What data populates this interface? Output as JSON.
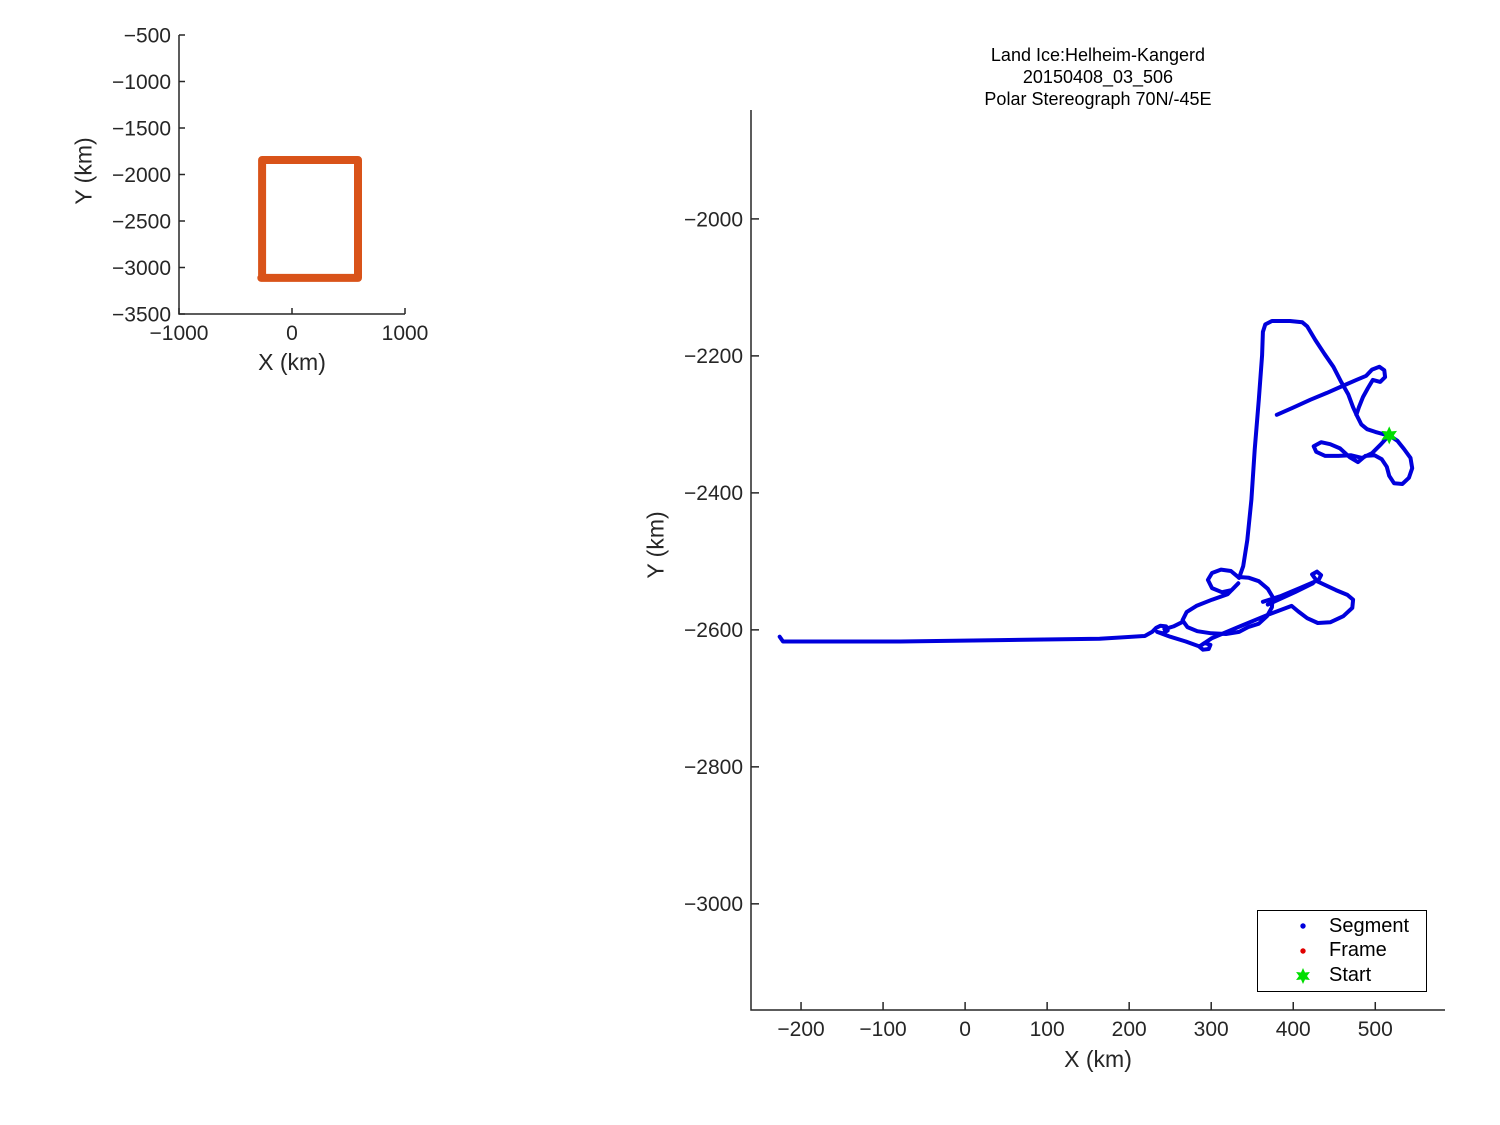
{
  "figure": {
    "colors": {
      "segment_blue": "#0000DC",
      "frame_red": "#E00000",
      "start_green": "#00DE00",
      "overview_box_orange": "#D95319",
      "axis_color": "#262626"
    }
  },
  "chart_data": [
    {
      "id": "overview",
      "type": "line",
      "xlabel": "X (km)",
      "ylabel": "Y (km)",
      "xlim": [
        -1000,
        1000
      ],
      "ylim": [
        -3500,
        -500
      ],
      "xticks": [
        -1000,
        0,
        1000
      ],
      "yticks": [
        -500,
        -1000,
        -1500,
        -2000,
        -2500,
        -3000,
        -3500
      ],
      "grid": false,
      "legend": null,
      "series": [
        {
          "name": "coverage-box",
          "color": "#D95319",
          "linewidth": 8,
          "points": [
            [
              -265,
              -1844
            ],
            [
              584,
              -1844
            ],
            [
              584,
              -3112
            ],
            [
              -265,
              -3112
            ],
            [
              -272,
              -3112
            ],
            [
              -265,
              -3112
            ],
            [
              -265,
              -1844
            ]
          ]
        }
      ]
    },
    {
      "id": "flight",
      "type": "line",
      "title_lines": [
        "Land Ice:Helheim-Kangerd",
        "20150408_03_506",
        "Polar Stereograph 70N/-45E"
      ],
      "xlabel": "X (km)",
      "ylabel": "Y (km)",
      "xlim": [
        -261,
        585
      ],
      "ylim": [
        -3155,
        -1841
      ],
      "xticks": [
        -200,
        -100,
        0,
        100,
        200,
        300,
        400,
        500
      ],
      "yticks": [
        -2000,
        -2200,
        -2400,
        -2600,
        -2800,
        -3000
      ],
      "grid": false,
      "legend": {
        "position": "southeast",
        "entries": [
          {
            "label": "Segment",
            "marker": "dot",
            "color": "#0000DC"
          },
          {
            "label": "Frame",
            "marker": "dot",
            "color": "#E00000"
          },
          {
            "label": "Start",
            "marker": "hexagram",
            "color": "#00DE00"
          }
        ]
      },
      "start_point": [
        517,
        -2316
      ],
      "series": [
        {
          "name": "segment-track",
          "color": "#0000DC",
          "linewidth": 4,
          "segments": [
            [
              [
                -226,
                -2610
              ],
              [
                -222,
                -2617
              ],
              [
                -79,
                -2617
              ],
              [
                43,
                -2615
              ],
              [
                164,
                -2613
              ],
              [
                219,
                -2609
              ],
              [
                228,
                -2603
              ],
              [
                233,
                -2597
              ],
              [
                238,
                -2594
              ],
              [
                245,
                -2595
              ],
              [
                247,
                -2601
              ],
              [
                241,
                -2605
              ],
              [
                234,
                -2603
              ],
              [
                250,
                -2610
              ],
              [
                269,
                -2617
              ],
              [
                285,
                -2624
              ],
              [
                290,
                -2629
              ],
              [
                297,
                -2628
              ],
              [
                299,
                -2622
              ],
              [
                292,
                -2619
              ],
              [
                286,
                -2624
              ],
              [
                301,
                -2612
              ],
              [
                335,
                -2595
              ],
              [
                369,
                -2578
              ],
              [
                398,
                -2565
              ],
              [
                406,
                -2573
              ],
              [
                417,
                -2583
              ],
              [
                430,
                -2590
              ],
              [
                445,
                -2589
              ],
              [
                461,
                -2580
              ],
              [
                472,
                -2568
              ],
              [
                473,
                -2556
              ],
              [
                466,
                -2549
              ],
              [
                452,
                -2542
              ],
              [
                438,
                -2534
              ],
              [
                429,
                -2529
              ],
              [
                423,
                -2519
              ],
              [
                429,
                -2515
              ],
              [
                434,
                -2520
              ],
              [
                431,
                -2527
              ],
              [
                408,
                -2539
              ],
              [
                384,
                -2551
              ],
              [
                363,
                -2559
              ]
            ],
            [
              [
                424,
                -2532
              ],
              [
                402,
                -2545
              ],
              [
                380,
                -2557
              ],
              [
                369,
                -2563
              ]
            ],
            [
              [
                334,
                -2524
              ],
              [
                339,
                -2507
              ],
              [
                344,
                -2469
              ],
              [
                349,
                -2410
              ],
              [
                353,
                -2337
              ],
              [
                358,
                -2264
              ],
              [
                362,
                -2199
              ],
              [
                363,
                -2165
              ],
              [
                366,
                -2154
              ],
              [
                374,
                -2149
              ],
              [
                396,
                -2149
              ],
              [
                411,
                -2151
              ],
              [
                417,
                -2157
              ],
              [
                427,
                -2177
              ],
              [
                438,
                -2197
              ],
              [
                449,
                -2216
              ],
              [
                458,
                -2237
              ],
              [
                467,
                -2256
              ],
              [
                473,
                -2275
              ],
              [
                478,
                -2288
              ],
              [
                483,
                -2300
              ],
              [
                490,
                -2307
              ],
              [
                500,
                -2311
              ],
              [
                509,
                -2314
              ],
              [
                517,
                -2316
              ]
            ],
            [
              [
                380,
                -2286
              ],
              [
                399,
                -2276
              ],
              [
                421,
                -2264
              ],
              [
                441,
                -2254
              ],
              [
                460,
                -2244
              ],
              [
                477,
                -2235
              ],
              [
                489,
                -2229
              ],
              [
                496,
                -2220
              ],
              [
                505,
                -2216
              ],
              [
                511,
                -2221
              ],
              [
                512,
                -2231
              ],
              [
                506,
                -2238
              ],
              [
                497,
                -2235
              ],
              [
                491,
                -2247
              ],
              [
                485,
                -2260
              ],
              [
                480,
                -2275
              ],
              [
                477,
                -2286
              ]
            ],
            [
              [
                517,
                -2316
              ],
              [
                527,
                -2324
              ],
              [
                535,
                -2336
              ],
              [
                543,
                -2349
              ],
              [
                545,
                -2364
              ],
              [
                541,
                -2378
              ],
              [
                533,
                -2387
              ],
              [
                523,
                -2386
              ],
              [
                517,
                -2375
              ],
              [
                514,
                -2362
              ],
              [
                508,
                -2351
              ],
              [
                499,
                -2345
              ],
              [
                488,
                -2346
              ],
              [
                479,
                -2355
              ],
              [
                469,
                -2348
              ],
              [
                457,
                -2335
              ],
              [
                445,
                -2329
              ],
              [
                434,
                -2326
              ],
              [
                425,
                -2332
              ],
              [
                428,
                -2340
              ],
              [
                439,
                -2346
              ],
              [
                455,
                -2346
              ],
              [
                470,
                -2345
              ],
              [
                484,
                -2349
              ],
              [
                496,
                -2342
              ],
              [
                507,
                -2329
              ],
              [
                516,
                -2317
              ]
            ],
            [
              [
                334,
                -2524
              ],
              [
                324,
                -2514
              ],
              [
                312,
                -2512
              ],
              [
                301,
                -2517
              ],
              [
                296,
                -2527
              ],
              [
                301,
                -2539
              ],
              [
                313,
                -2545
              ],
              [
                325,
                -2542
              ],
              [
                333,
                -2532
              ],
              [
                320,
                -2548
              ],
              [
                301,
                -2556
              ],
              [
                282,
                -2565
              ],
              [
                270,
                -2574
              ],
              [
                265,
                -2586
              ],
              [
                271,
                -2596
              ],
              [
                283,
                -2602
              ],
              [
                300,
                -2605
              ],
              [
                318,
                -2606
              ],
              [
                334,
                -2603
              ],
              [
                345,
                -2596
              ],
              [
                358,
                -2591
              ],
              [
                368,
                -2580
              ],
              [
                374,
                -2567
              ],
              [
                375,
                -2552
              ],
              [
                369,
                -2540
              ],
              [
                358,
                -2529
              ],
              [
                346,
                -2524
              ],
              [
                336,
                -2523
              ],
              [
                334,
                -2524
              ]
            ],
            [
              [
                266,
                -2588
              ],
              [
                254,
                -2595
              ],
              [
                243,
                -2599
              ]
            ]
          ]
        }
      ]
    }
  ]
}
